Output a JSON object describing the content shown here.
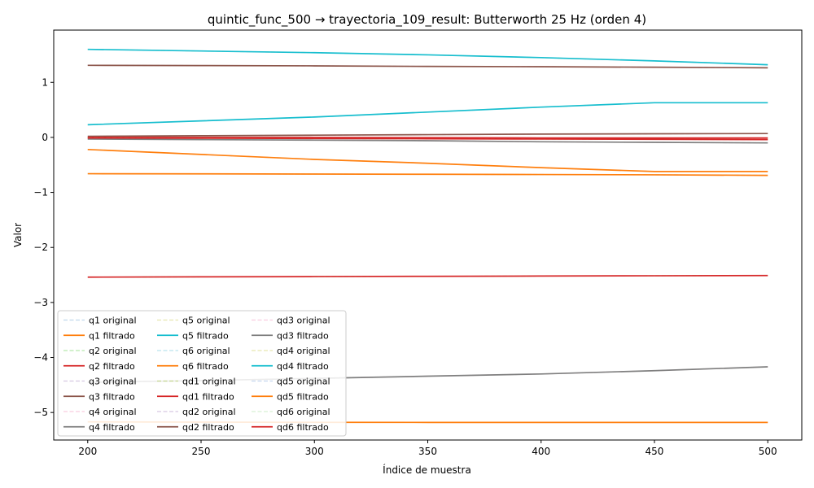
{
  "chart_data": {
    "type": "line",
    "title": "quintic_func_500 → trayectoria_109_result: Butterworth 25 Hz (orden 4)",
    "xlabel": "Índice de muestra",
    "ylabel": "Valor",
    "xlim": [
      185,
      515
    ],
    "ylim": [
      -5.5,
      1.95
    ],
    "xticks": [
      200,
      250,
      300,
      350,
      400,
      450,
      500
    ],
    "yticks": [
      -5,
      -4,
      -3,
      -2,
      -1,
      0,
      1
    ],
    "ytick_labels": [
      "−5",
      "−4",
      "−3",
      "−2",
      "−1",
      "0",
      "1"
    ],
    "grid": false,
    "legend_position": "lower-left",
    "legend_columns": 3,
    "x": [
      200,
      250,
      300,
      350,
      400,
      450,
      500
    ],
    "series": [
      {
        "name": "q1 original",
        "style": "dashed",
        "color": "#a6c8e4",
        "values": [
          -0.22,
          -0.31,
          -0.4,
          -0.47,
          -0.55,
          -0.62,
          -0.62
        ]
      },
      {
        "name": "q1 filtrado",
        "style": "solid",
        "color": "#ff7f0e",
        "values": [
          -0.22,
          -0.31,
          -0.4,
          -0.47,
          -0.55,
          -0.62,
          -0.62
        ]
      },
      {
        "name": "q2 original",
        "style": "dashed",
        "color": "#98df8a",
        "values": [
          -2.54,
          -2.535,
          -2.53,
          -2.525,
          -2.52,
          -2.515,
          -2.51
        ]
      },
      {
        "name": "q2 filtrado",
        "style": "solid",
        "color": "#d62728",
        "values": [
          -2.54,
          -2.535,
          -2.53,
          -2.525,
          -2.52,
          -2.515,
          -2.51
        ]
      },
      {
        "name": "q3 original",
        "style": "dashed",
        "color": "#c5b0d5",
        "values": [
          1.31,
          1.305,
          1.3,
          1.29,
          1.285,
          1.275,
          1.265
        ]
      },
      {
        "name": "q3 filtrado",
        "style": "solid",
        "color": "#8c564b",
        "values": [
          1.31,
          1.305,
          1.3,
          1.29,
          1.285,
          1.275,
          1.265
        ]
      },
      {
        "name": "q4 original",
        "style": "dashed",
        "color": "#f7b6d2",
        "values": [
          -0.03,
          -0.04,
          -0.05,
          -0.06,
          -0.08,
          -0.09,
          -0.1
        ]
      },
      {
        "name": "q4 filtrado",
        "style": "solid",
        "color": "#7f7f7f",
        "values": [
          -0.03,
          -0.04,
          -0.05,
          -0.06,
          -0.08,
          -0.09,
          -0.1
        ]
      },
      {
        "name": "q5 original",
        "style": "dashed",
        "color": "#dbdb8d",
        "values": [
          1.6,
          1.57,
          1.54,
          1.5,
          1.45,
          1.39,
          1.32
        ]
      },
      {
        "name": "q5 filtrado",
        "style": "solid",
        "color": "#17becf",
        "values": [
          1.6,
          1.57,
          1.54,
          1.5,
          1.45,
          1.39,
          1.32
        ]
      },
      {
        "name": "q6 original",
        "style": "dashed",
        "color": "#9edae5",
        "values": [
          -0.66,
          -0.663,
          -0.666,
          -0.67,
          -0.675,
          -0.68,
          -0.69
        ]
      },
      {
        "name": "q6 filtrado",
        "style": "solid",
        "color": "#ff7f0e",
        "values": [
          -0.66,
          -0.663,
          -0.666,
          -0.67,
          -0.675,
          -0.68,
          -0.69
        ]
      },
      {
        "name": "qd1 original",
        "style": "dashed",
        "color": "#b5cf6b",
        "values": [
          -0.01,
          -0.015,
          -0.02,
          -0.025,
          -0.03,
          -0.035,
          -0.04
        ]
      },
      {
        "name": "qd1 filtrado",
        "style": "solid",
        "color": "#d62728",
        "values": [
          -0.01,
          -0.015,
          -0.02,
          -0.025,
          -0.03,
          -0.035,
          -0.04
        ]
      },
      {
        "name": "qd2 original",
        "style": "dashed",
        "color": "#c5b0d5",
        "values": [
          0.02,
          0.03,
          0.04,
          0.05,
          0.06,
          0.065,
          0.07
        ]
      },
      {
        "name": "qd2 filtrado",
        "style": "solid",
        "color": "#8c564b",
        "values": [
          0.02,
          0.03,
          0.04,
          0.05,
          0.06,
          0.065,
          0.07
        ]
      },
      {
        "name": "qd3 original",
        "style": "dashed",
        "color": "#f7b6d2",
        "values": [
          -4.45,
          -4.42,
          -4.38,
          -4.34,
          -4.3,
          -4.24,
          -4.17
        ]
      },
      {
        "name": "qd3 filtrado",
        "style": "solid",
        "color": "#7f7f7f",
        "values": [
          -4.45,
          -4.42,
          -4.38,
          -4.34,
          -4.3,
          -4.24,
          -4.17
        ]
      },
      {
        "name": "qd4 original",
        "style": "dashed",
        "color": "#dbdb8d",
        "values": [
          0.23,
          0.3,
          0.37,
          0.46,
          0.55,
          0.63,
          0.63
        ]
      },
      {
        "name": "qd4 filtrado",
        "style": "solid",
        "color": "#17becf",
        "values": [
          0.23,
          0.3,
          0.37,
          0.46,
          0.55,
          0.63,
          0.63
        ]
      },
      {
        "name": "qd5 original",
        "style": "dashed",
        "color": "#aec7e8",
        "values": [
          -5.17,
          -5.175,
          -5.178,
          -5.18,
          -5.18,
          -5.18,
          -5.18
        ]
      },
      {
        "name": "qd5 filtrado",
        "style": "solid",
        "color": "#ff7f0e",
        "values": [
          -5.17,
          -5.175,
          -5.178,
          -5.18,
          -5.18,
          -5.18,
          -5.18
        ]
      },
      {
        "name": "qd6 original",
        "style": "dashed",
        "color": "#c7e9c0",
        "values": [
          0.0,
          0.0,
          0.0,
          -0.005,
          -0.01,
          -0.01,
          -0.01
        ]
      },
      {
        "name": "qd6 filtrado",
        "style": "solid",
        "color": "#d62728",
        "values": [
          0.0,
          0.0,
          0.0,
          -0.005,
          -0.01,
          -0.01,
          -0.01
        ]
      }
    ]
  }
}
